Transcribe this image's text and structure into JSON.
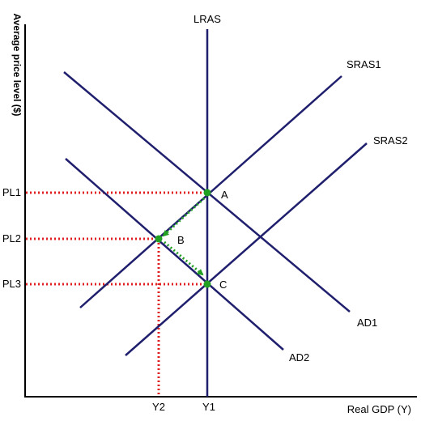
{
  "colors": {
    "curve": "#1f1f6e",
    "axis": "#000000",
    "guide": "#e02020",
    "arrow": "#22a022",
    "point": "#22a022",
    "background": "#ffffff"
  },
  "axes": {
    "y_title": "Average price level ($)",
    "x_title": "Real GDP (Y)"
  },
  "curves": {
    "lras": "LRAS",
    "sras1": "SRAS1",
    "sras2": "SRAS2",
    "ad1": "AD1",
    "ad2": "AD2"
  },
  "price_levels": [
    "PL1",
    "PL2",
    "PL3"
  ],
  "outputs": [
    "Y2",
    "Y1"
  ],
  "points": [
    "A",
    "B",
    "C"
  ]
}
